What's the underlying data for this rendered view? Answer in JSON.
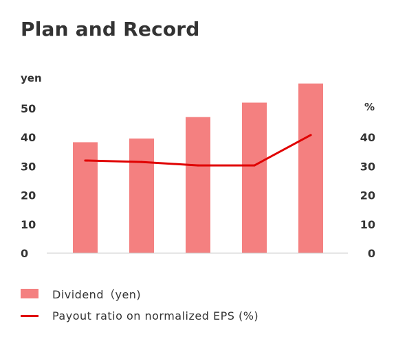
{
  "chart_data": {
    "type": "bar",
    "title": "Plan and Record",
    "categories": [
      "",
      "",
      "",
      "",
      ""
    ],
    "series": [
      {
        "name": "Dividend（yen)",
        "type": "bar",
        "axis": "left",
        "values": [
          38.3,
          39.6,
          47,
          52,
          58.6
        ]
      },
      {
        "name": "Payout ratio on normalized EPS (%)",
        "type": "line",
        "axis": "right",
        "values": [
          32,
          31.5,
          30.3,
          30.3,
          40.8
        ]
      }
    ],
    "y_left": {
      "unit": "yen",
      "range": [
        0,
        58
      ],
      "ticks": [
        "50",
        "40",
        "30",
        "20",
        "10",
        "0"
      ]
    },
    "y_right": {
      "unit": "%",
      "range": [
        0,
        58
      ],
      "ticks": [
        "40",
        "30",
        "20",
        "10",
        "0"
      ]
    },
    "grid": false,
    "legend_position": "bottom-left",
    "colors": {
      "bar": "#f48080",
      "line": "#e00000",
      "axis": "#cccccc"
    }
  }
}
